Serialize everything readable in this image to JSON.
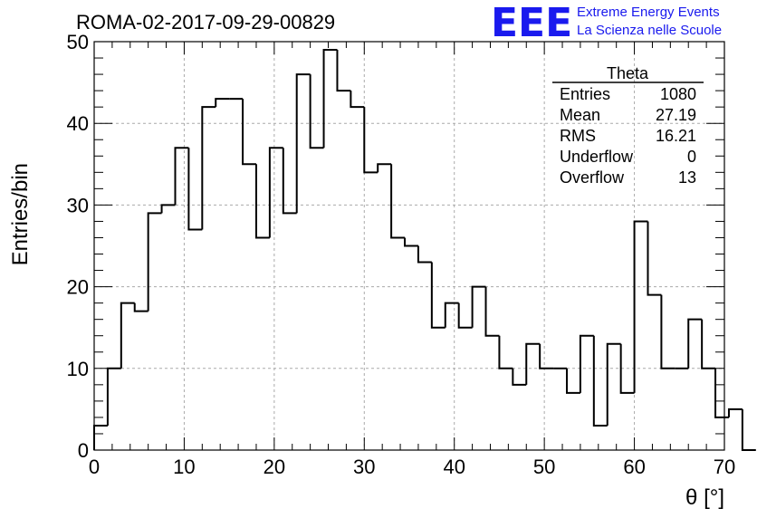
{
  "header": {
    "run_title": "ROMA-02-2017-09-29-00829",
    "logo_mark": "EEE",
    "logo_line1": "Extreme Energy Events",
    "logo_line2": "La Scienza nelle Scuole"
  },
  "stats_box": {
    "name": "Theta",
    "rows": [
      {
        "label": "Entries",
        "value": "1080"
      },
      {
        "label": "Mean",
        "value": "27.19"
      },
      {
        "label": "RMS",
        "value": "16.21"
      },
      {
        "label": "Underflow",
        "value": "0"
      },
      {
        "label": "Overflow",
        "value": "13"
      }
    ]
  },
  "chart_data": {
    "type": "histogram",
    "xlabel": "θ [°]",
    "ylabel": "Entries/bin",
    "xlim": [
      0,
      70
    ],
    "ylim": [
      0,
      50
    ],
    "x_ticks": [
      "0",
      "10",
      "20",
      "30",
      "40",
      "50",
      "60",
      "70"
    ],
    "y_ticks": [
      "0",
      "10",
      "20",
      "30",
      "40",
      "50"
    ],
    "grid": true,
    "legend": "top-right",
    "bin_width": 1.5,
    "bin_start": 0,
    "values": [
      3,
      10,
      18,
      17,
      29,
      30,
      37,
      27,
      42,
      43,
      43,
      35,
      26,
      37,
      29,
      46,
      37,
      49,
      44,
      42,
      34,
      35,
      26,
      25,
      23,
      15,
      18,
      15,
      20,
      14,
      10,
      8,
      13,
      10,
      10,
      7,
      14,
      3,
      13,
      7,
      28,
      19,
      10,
      10,
      16,
      10,
      4,
      5,
      0
    ]
  }
}
